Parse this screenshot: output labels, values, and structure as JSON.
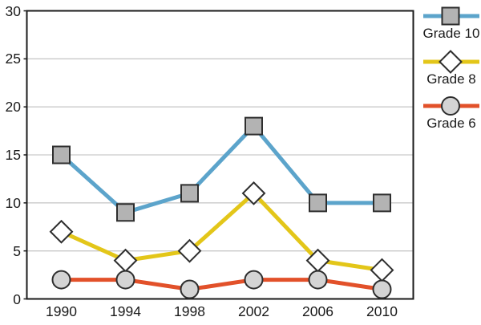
{
  "chart_data": {
    "type": "line",
    "categories": [
      "1990",
      "1994",
      "1998",
      "2002",
      "2006",
      "2010"
    ],
    "series": [
      {
        "name": "Grade 10",
        "values": [
          15,
          9,
          11,
          18,
          10,
          10
        ],
        "color": "#5CA4CB",
        "marker": "square",
        "marker_fill": "#B3B3B3"
      },
      {
        "name": "Grade 8",
        "values": [
          7,
          4,
          5,
          11,
          4,
          3
        ],
        "color": "#E3C619",
        "marker": "diamond",
        "marker_fill": "#FFFFFF"
      },
      {
        "name": "Grade 6",
        "values": [
          2,
          2,
          1,
          2,
          2,
          1
        ],
        "color": "#E2512A",
        "marker": "circle",
        "marker_fill": "#D4D4D4"
      }
    ],
    "title": "",
    "xlabel": "",
    "ylabel": "",
    "ylim": [
      0,
      30
    ],
    "y_ticks": [
      0,
      5,
      10,
      15,
      20,
      25,
      30
    ],
    "grid": "horizontal",
    "legend_position": "right"
  },
  "colors": {
    "background": "#FFFFFF",
    "axis_border": "#1A1A1A",
    "gridline": "#C9C9C9",
    "marker_stroke": "#2E2E2E",
    "text": "#1A1A1A"
  }
}
